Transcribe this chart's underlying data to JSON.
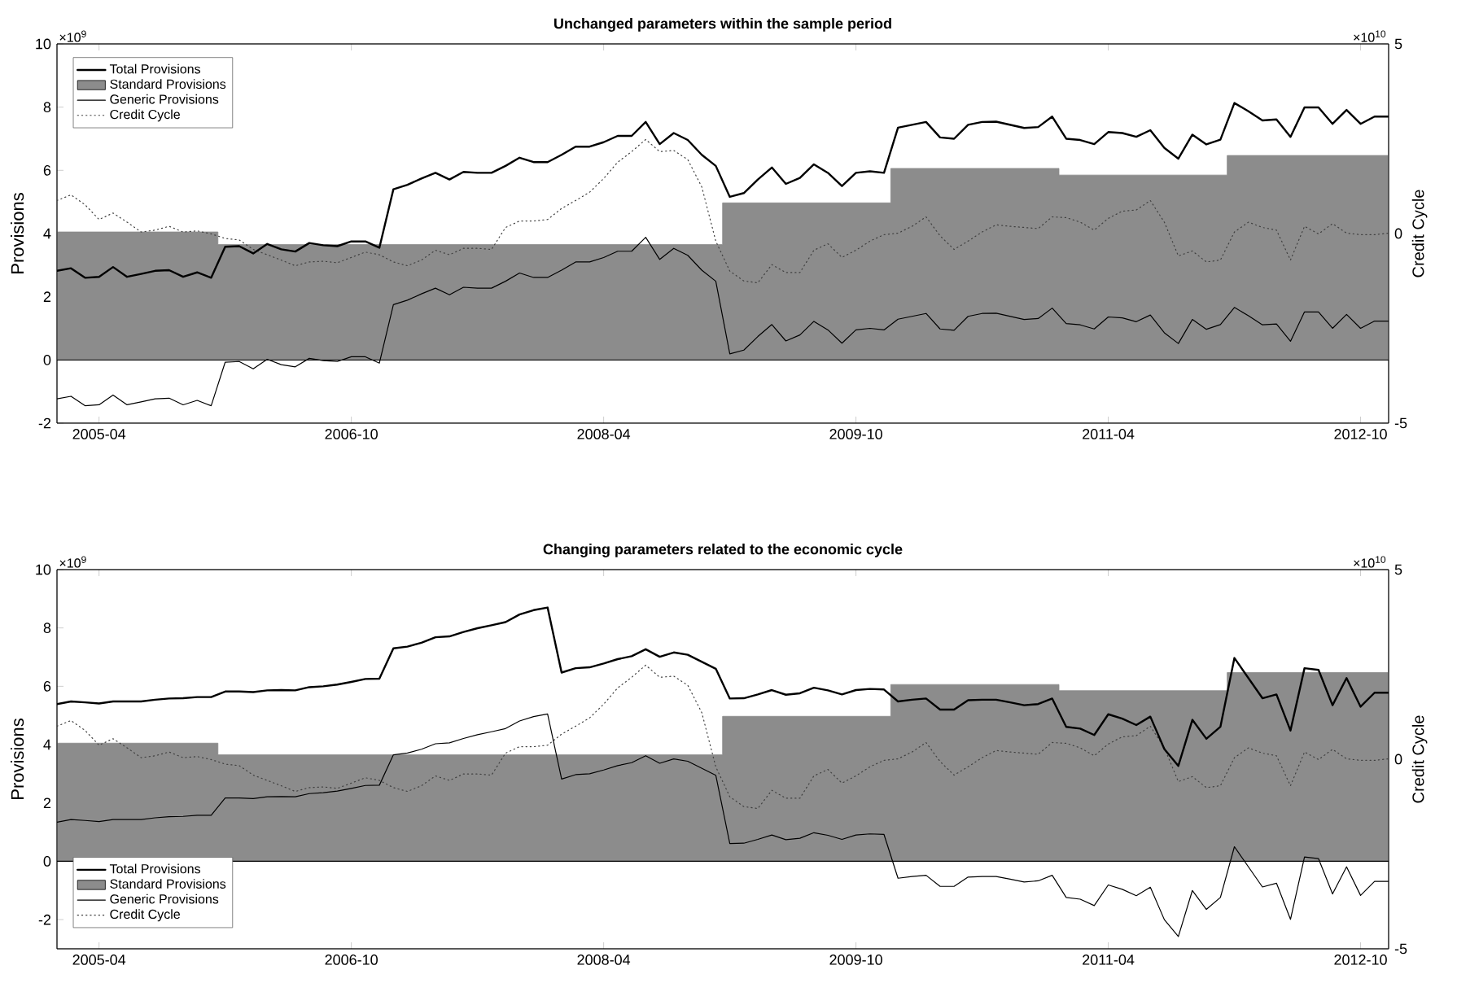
{
  "chart_data": [
    {
      "type": "line",
      "title": "Unchanged parameters within the sample period",
      "ylabel": "Provisions",
      "y2label": "Credit Cycle",
      "annotations": [
        "×10$^{9}$",
        "×10$^{10}$"
      ],
      "x": [
        "2005-01",
        "2005-02",
        "2005-03",
        "2005-04",
        "2005-05",
        "2005-06",
        "2005-07",
        "2005-08",
        "2005-09",
        "2005-10",
        "2005-11",
        "2005-12",
        "2006-01",
        "2006-02",
        "2006-03",
        "2006-04",
        "2006-05",
        "2006-06",
        "2006-07",
        "2006-08",
        "2006-09",
        "2006-10",
        "2006-11",
        "2006-12",
        "2007-01",
        "2007-02",
        "2007-03",
        "2007-04",
        "2007-05",
        "2007-06",
        "2007-07",
        "2007-08",
        "2007-09",
        "2007-10",
        "2007-11",
        "2007-12",
        "2008-01",
        "2008-02",
        "2008-03",
        "2008-04",
        "2008-05",
        "2008-06",
        "2008-07",
        "2008-08",
        "2008-09",
        "2008-10",
        "2008-11",
        "2008-12",
        "2009-01",
        "2009-02",
        "2009-03",
        "2009-04",
        "2009-05",
        "2009-06",
        "2009-07",
        "2009-08",
        "2009-09",
        "2009-10",
        "2009-11",
        "2009-12",
        "2010-01",
        "2010-02",
        "2010-03",
        "2010-04",
        "2010-05",
        "2010-06",
        "2010-07",
        "2010-08",
        "2010-09",
        "2010-10",
        "2010-11",
        "2010-12",
        "2011-01",
        "2011-02",
        "2011-03",
        "2011-04",
        "2011-05",
        "2011-06",
        "2011-07",
        "2011-08",
        "2011-09",
        "2011-10",
        "2011-11",
        "2011-12",
        "2012-01",
        "2012-02",
        "2012-03",
        "2012-04",
        "2012-05",
        "2012-06",
        "2012-07",
        "2012-08",
        "2012-09",
        "2012-10",
        "2012-11",
        "2012-12"
      ],
      "xlim": [
        "2005-01",
        "2012-12"
      ],
      "xticks": [
        "2005-04",
        "2006-10",
        "2008-04",
        "2009-10",
        "2011-04",
        "2012-10"
      ],
      "ylim": [
        -2,
        10
      ],
      "yticks": [
        -2,
        0,
        2,
        4,
        6,
        8,
        10
      ],
      "y2lim": [
        -5,
        5
      ],
      "y2ticks": [
        -5,
        0,
        5
      ],
      "legend": "top left",
      "ref_lines": [
        {
          "axis": "y",
          "value": 0,
          "color": "#000000"
        }
      ],
      "series": [
        {
          "name": "Total Provisions",
          "type": "line",
          "color": "#000000",
          "line_style": "solid",
          "values": [
            2.82,
            2.9,
            2.6,
            2.63,
            2.94,
            2.63,
            2.72,
            2.82,
            2.84,
            2.63,
            2.77,
            2.6,
            3.58,
            3.6,
            3.37,
            3.67,
            3.5,
            3.43,
            3.7,
            3.63,
            3.6,
            3.75,
            3.75,
            3.55,
            5.4,
            5.54,
            5.74,
            5.92,
            5.71,
            5.95,
            5.92,
            5.92,
            6.14,
            6.4,
            6.26,
            6.26,
            6.49,
            6.75,
            6.75,
            6.89,
            7.09,
            7.09,
            7.53,
            6.83,
            7.18,
            6.96,
            6.49,
            6.14,
            5.16,
            5.28,
            5.71,
            6.09,
            5.57,
            5.76,
            6.19,
            5.92,
            5.5,
            5.92,
            5.97,
            5.92,
            7.35,
            7.44,
            7.53,
            7.04,
            7.0,
            7.44,
            7.53,
            7.54,
            7.44,
            7.34,
            7.37,
            7.7,
            7.0,
            6.96,
            6.83,
            7.21,
            7.18,
            7.06,
            7.27,
            6.71,
            6.37,
            7.13,
            6.82,
            6.97,
            8.13,
            7.87,
            7.58,
            7.61,
            7.06,
            7.99,
            7.99,
            7.47,
            7.91,
            7.47,
            7.7,
            7.7
          ]
        },
        {
          "name": "Standard Provisions",
          "type": "area",
          "color": "#8c8c8c",
          "x": [
            "2005-01",
            "2005-12-16",
            "2005-12-16",
            "2008-12-16",
            "2008-12-16",
            "2009-12-16",
            "2009-12-16",
            "2010-12-16",
            "2010-12-16",
            "2011-12-16",
            "2011-12-16",
            "2012-12"
          ],
          "values": [
            4.05,
            4.05,
            3.65,
            3.65,
            4.97,
            4.97,
            6.06,
            6.06,
            5.85,
            5.85,
            6.47,
            6.47
          ]
        },
        {
          "name": "Generic Provisions",
          "type": "line",
          "color": "#000000",
          "line_style": "solid",
          "values": [
            -1.23,
            -1.15,
            -1.45,
            -1.42,
            -1.11,
            -1.42,
            -1.33,
            -1.23,
            -1.21,
            -1.42,
            -1.28,
            -1.45,
            -0.07,
            -0.05,
            -0.28,
            0.02,
            -0.15,
            -0.22,
            0.05,
            -0.02,
            -0.05,
            0.1,
            0.1,
            -0.1,
            1.75,
            1.89,
            2.09,
            2.27,
            2.06,
            2.3,
            2.27,
            2.27,
            2.49,
            2.75,
            2.61,
            2.61,
            2.84,
            3.1,
            3.1,
            3.24,
            3.44,
            3.44,
            3.88,
            3.18,
            3.53,
            3.31,
            2.84,
            2.49,
            0.19,
            0.31,
            0.74,
            1.12,
            0.6,
            0.79,
            1.22,
            0.95,
            0.53,
            0.95,
            1.0,
            0.95,
            1.29,
            1.38,
            1.47,
            0.98,
            0.94,
            1.38,
            1.47,
            1.48,
            1.38,
            1.28,
            1.31,
            1.64,
            1.15,
            1.11,
            0.98,
            1.36,
            1.33,
            1.21,
            1.42,
            0.86,
            0.52,
            1.28,
            0.97,
            1.12,
            1.66,
            1.4,
            1.11,
            1.14,
            0.59,
            1.52,
            1.52,
            1.0,
            1.44,
            1.0,
            1.23,
            1.23
          ]
        },
        {
          "name": "Credit Cycle",
          "type": "line",
          "axis": "y2",
          "color": "#404040",
          "line_style": "dotted",
          "values": [
            0.87,
            1.02,
            0.76,
            0.37,
            0.54,
            0.3,
            0.04,
            0.09,
            0.19,
            0.04,
            0.07,
            -0.01,
            -0.13,
            -0.17,
            -0.42,
            -0.56,
            -0.7,
            -0.85,
            -0.75,
            -0.73,
            -0.77,
            -0.63,
            -0.49,
            -0.56,
            -0.75,
            -0.85,
            -0.7,
            -0.44,
            -0.56,
            -0.39,
            -0.39,
            -0.42,
            0.16,
            0.33,
            0.33,
            0.37,
            0.66,
            0.87,
            1.09,
            1.45,
            1.88,
            2.16,
            2.48,
            2.16,
            2.19,
            1.95,
            1.23,
            -0.2,
            -0.99,
            -1.25,
            -1.3,
            -0.82,
            -1.03,
            -1.03,
            -0.44,
            -0.27,
            -0.63,
            -0.44,
            -0.2,
            -0.03,
            0.01,
            0.19,
            0.44,
            -0.06,
            -0.42,
            -0.2,
            0.04,
            0.23,
            0.19,
            0.16,
            0.13,
            0.44,
            0.42,
            0.3,
            0.09,
            0.4,
            0.59,
            0.62,
            0.87,
            0.3,
            -0.59,
            -0.46,
            -0.75,
            -0.7,
            0.04,
            0.3,
            0.16,
            0.09,
            -0.7,
            0.19,
            -0.01,
            0.26,
            0.01,
            -0.03,
            -0.03,
            0.01
          ]
        }
      ]
    },
    {
      "type": "line",
      "title": "Changing parameters related to the economic cycle",
      "ylabel": "Provisions",
      "y2label": "Credit Cycle",
      "annotations": [
        "×10$^{9}$",
        "×10$^{10}$"
      ],
      "x": [
        "2005-01",
        "2005-02",
        "2005-03",
        "2005-04",
        "2005-05",
        "2005-06",
        "2005-07",
        "2005-08",
        "2005-09",
        "2005-10",
        "2005-11",
        "2005-12",
        "2006-01",
        "2006-02",
        "2006-03",
        "2006-04",
        "2006-05",
        "2006-06",
        "2006-07",
        "2006-08",
        "2006-09",
        "2006-10",
        "2006-11",
        "2006-12",
        "2007-01",
        "2007-02",
        "2007-03",
        "2007-04",
        "2007-05",
        "2007-06",
        "2007-07",
        "2007-08",
        "2007-09",
        "2007-10",
        "2007-11",
        "2007-12",
        "2008-01",
        "2008-02",
        "2008-03",
        "2008-04",
        "2008-05",
        "2008-06",
        "2008-07",
        "2008-08",
        "2008-09",
        "2008-10",
        "2008-11",
        "2008-12",
        "2009-01",
        "2009-02",
        "2009-03",
        "2009-04",
        "2009-05",
        "2009-06",
        "2009-07",
        "2009-08",
        "2009-09",
        "2009-10",
        "2009-11",
        "2009-12",
        "2010-01",
        "2010-02",
        "2010-03",
        "2010-04",
        "2010-05",
        "2010-06",
        "2010-07",
        "2010-08",
        "2010-09",
        "2010-10",
        "2010-11",
        "2010-12",
        "2011-01",
        "2011-02",
        "2011-03",
        "2011-04",
        "2011-05",
        "2011-06",
        "2011-07",
        "2011-08",
        "2011-09",
        "2011-10",
        "2011-11",
        "2011-12",
        "2012-01",
        "2012-02",
        "2012-03",
        "2012-04",
        "2012-05",
        "2012-06",
        "2012-07",
        "2012-08",
        "2012-09",
        "2012-10",
        "2012-11",
        "2012-12"
      ],
      "xlim": [
        "2005-01",
        "2012-12"
      ],
      "xticks": [
        "2005-04",
        "2006-10",
        "2008-04",
        "2009-10",
        "2011-04",
        "2012-10"
      ],
      "ylim": [
        -3,
        10
      ],
      "yticks": [
        -2,
        0,
        2,
        4,
        6,
        8,
        10
      ],
      "y2lim": [
        -5,
        5
      ],
      "y2ticks": [
        -5,
        0,
        5
      ],
      "legend": "bottom left",
      "ref_lines": [
        {
          "axis": "y",
          "value": 0,
          "color": "#000000"
        }
      ],
      "series": [
        {
          "name": "Total Provisions",
          "type": "line",
          "color": "#000000",
          "line_style": "solid",
          "values": [
            5.39,
            5.48,
            5.45,
            5.41,
            5.48,
            5.48,
            5.48,
            5.54,
            5.58,
            5.59,
            5.63,
            5.63,
            5.82,
            5.82,
            5.8,
            5.86,
            5.87,
            5.86,
            5.97,
            6.0,
            6.06,
            6.15,
            6.25,
            6.26,
            7.3,
            7.36,
            7.49,
            7.68,
            7.71,
            7.86,
            7.99,
            8.09,
            8.2,
            8.46,
            8.61,
            8.7,
            6.47,
            6.62,
            6.65,
            6.78,
            6.93,
            7.03,
            7.27,
            7.01,
            7.16,
            7.08,
            6.84,
            6.6,
            5.58,
            5.59,
            5.72,
            5.87,
            5.71,
            5.76,
            5.95,
            5.86,
            5.72,
            5.87,
            5.91,
            5.89,
            5.48,
            5.54,
            5.58,
            5.2,
            5.2,
            5.52,
            5.54,
            5.54,
            5.45,
            5.35,
            5.39,
            5.58,
            4.61,
            4.55,
            4.33,
            5.04,
            4.89,
            4.67,
            4.96,
            3.85,
            3.27,
            4.85,
            4.2,
            4.61,
            6.97,
            6.28,
            5.59,
            5.72,
            4.48,
            6.62,
            6.56,
            5.35,
            6.28,
            5.3,
            5.78,
            5.78
          ]
        },
        {
          "name": "Standard Provisions",
          "type": "area",
          "color": "#8c8c8c",
          "x": [
            "2005-01",
            "2005-12-16",
            "2005-12-16",
            "2008-12-16",
            "2008-12-16",
            "2009-12-16",
            "2009-12-16",
            "2010-12-16",
            "2010-12-16",
            "2011-12-16",
            "2011-12-16",
            "2012-12"
          ],
          "values": [
            4.05,
            4.05,
            3.65,
            3.65,
            4.97,
            4.97,
            6.06,
            6.06,
            5.85,
            5.85,
            6.47,
            6.47
          ]
        },
        {
          "name": "Generic Provisions",
          "type": "line",
          "color": "#000000",
          "line_style": "solid",
          "values": [
            1.34,
            1.43,
            1.4,
            1.36,
            1.43,
            1.43,
            1.43,
            1.49,
            1.53,
            1.54,
            1.58,
            1.58,
            2.17,
            2.17,
            2.15,
            2.21,
            2.22,
            2.21,
            2.32,
            2.35,
            2.41,
            2.5,
            2.6,
            2.61,
            3.65,
            3.71,
            3.84,
            4.03,
            4.06,
            4.21,
            4.34,
            4.44,
            4.55,
            4.81,
            4.96,
            5.05,
            2.82,
            2.97,
            3.0,
            3.13,
            3.28,
            3.38,
            3.62,
            3.36,
            3.51,
            3.43,
            3.19,
            2.95,
            0.61,
            0.62,
            0.75,
            0.9,
            0.74,
            0.79,
            0.98,
            0.89,
            0.75,
            0.9,
            0.94,
            0.92,
            -0.58,
            -0.52,
            -0.48,
            -0.86,
            -0.86,
            -0.54,
            -0.52,
            -0.52,
            -0.61,
            -0.71,
            -0.67,
            -0.48,
            -1.24,
            -1.3,
            -1.52,
            -0.81,
            -0.96,
            -1.18,
            -0.89,
            -2.0,
            -2.58,
            -1.0,
            -1.65,
            -1.24,
            0.5,
            -0.19,
            -0.88,
            -0.75,
            -1.99,
            0.15,
            0.09,
            -1.12,
            -0.19,
            -1.17,
            -0.69,
            -0.69
          ]
        },
        {
          "name": "Credit Cycle",
          "type": "line",
          "axis": "y2",
          "color": "#404040",
          "line_style": "dotted",
          "values": [
            0.87,
            1.02,
            0.76,
            0.37,
            0.54,
            0.3,
            0.04,
            0.09,
            0.19,
            0.04,
            0.07,
            -0.01,
            -0.13,
            -0.17,
            -0.42,
            -0.56,
            -0.7,
            -0.85,
            -0.75,
            -0.73,
            -0.77,
            -0.63,
            -0.49,
            -0.56,
            -0.75,
            -0.85,
            -0.7,
            -0.44,
            -0.56,
            -0.39,
            -0.39,
            -0.42,
            0.16,
            0.33,
            0.33,
            0.37,
            0.66,
            0.87,
            1.09,
            1.45,
            1.88,
            2.16,
            2.48,
            2.16,
            2.19,
            1.95,
            1.23,
            -0.2,
            -0.99,
            -1.25,
            -1.3,
            -0.82,
            -1.03,
            -1.03,
            -0.44,
            -0.27,
            -0.63,
            -0.44,
            -0.2,
            -0.03,
            0.01,
            0.19,
            0.44,
            -0.06,
            -0.42,
            -0.2,
            0.04,
            0.23,
            0.19,
            0.16,
            0.13,
            0.44,
            0.42,
            0.3,
            0.09,
            0.4,
            0.59,
            0.62,
            0.87,
            0.3,
            -0.59,
            -0.46,
            -0.75,
            -0.7,
            0.04,
            0.3,
            0.16,
            0.09,
            -0.7,
            0.19,
            -0.01,
            0.26,
            0.01,
            -0.03,
            -0.03,
            0.01
          ]
        }
      ]
    }
  ]
}
